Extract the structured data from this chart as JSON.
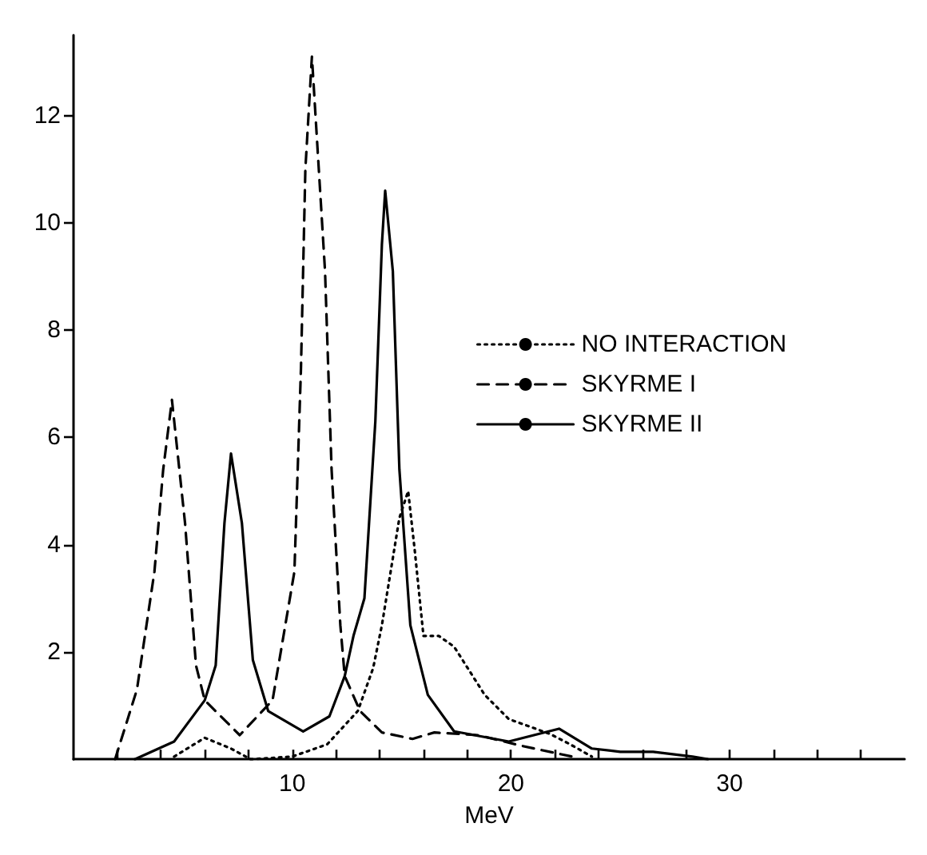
{
  "chart_data": {
    "type": "line",
    "xlabel": "MeV",
    "xlim": [
      0,
      38
    ],
    "ylim": [
      0,
      13.5
    ],
    "xticks": [
      {
        "value": 2,
        "label": null
      },
      {
        "value": 4,
        "label": null
      },
      {
        "value": 6,
        "label": null
      },
      {
        "value": 8,
        "label": null
      },
      10,
      {
        "value": 12,
        "label": null
      },
      {
        "value": 14,
        "label": null
      },
      {
        "value": 16,
        "label": null
      },
      {
        "value": 18,
        "label": null
      },
      20,
      {
        "value": 22,
        "label": null
      },
      {
        "value": 24,
        "label": null
      },
      {
        "value": 26,
        "label": null
      },
      {
        "value": 28,
        "label": null
      },
      30,
      {
        "value": 32,
        "label": null
      },
      {
        "value": 34,
        "label": null
      },
      {
        "value": 36,
        "label": null
      }
    ],
    "yticks": [
      2,
      4,
      6,
      8,
      10,
      12
    ],
    "grid": false,
    "legend": "right",
    "marker": "none",
    "series": [
      {
        "name": "NO INTERACTION",
        "color": "#000000",
        "line_style": "dotted",
        "x": [
          4.6,
          6.0,
          7.2,
          8.1,
          10.0,
          11.6,
          13.0,
          13.7,
          14.1,
          14.9,
          15.3,
          15.6,
          16.0,
          16.7,
          17.4,
          18.8,
          19.9,
          21.8,
          22.7,
          23.7
        ],
        "values": [
          0.05,
          0.4,
          0.2,
          0.0,
          0.05,
          0.28,
          0.9,
          1.7,
          2.5,
          4.5,
          5.0,
          3.9,
          2.3,
          2.3,
          2.1,
          1.2,
          0.75,
          0.47,
          0.28,
          0.05
        ]
      },
      {
        "name": "SKYRME I",
        "color": "#000000",
        "line_style": "dashed",
        "x": [
          1.9,
          2.9,
          3.7,
          4.1,
          4.5,
          5.1,
          5.6,
          6.0,
          7.6,
          9.1,
          10.1,
          10.4,
          10.6,
          10.9,
          11.5,
          11.8,
          12.2,
          12.4,
          13.1,
          14.1,
          15.5,
          16.5,
          18.5,
          20.5,
          22.8,
          23.0
        ],
        "values": [
          0.0,
          1.3,
          3.5,
          5.4,
          6.7,
          4.4,
          1.75,
          1.1,
          0.45,
          1.1,
          3.5,
          7.3,
          11.0,
          13.1,
          9.1,
          5.4,
          2.5,
          1.55,
          0.9,
          0.5,
          0.38,
          0.5,
          0.45,
          0.25,
          0.05,
          0.0
        ]
      },
      {
        "name": "SKYRME II",
        "color": "#000000",
        "line_style": "solid",
        "x": [
          2.8,
          4.6,
          6.0,
          6.5,
          6.9,
          7.2,
          7.7,
          8.2,
          8.9,
          10.5,
          11.7,
          12.4,
          12.8,
          13.3,
          13.8,
          14.1,
          14.25,
          14.6,
          14.9,
          15.4,
          16.2,
          17.4,
          19.9,
          22.2,
          23.7,
          25.0,
          26.5,
          28.3,
          29.0
        ],
        "values": [
          0.0,
          0.33,
          1.1,
          1.75,
          4.4,
          5.7,
          4.4,
          1.85,
          0.9,
          0.52,
          0.8,
          1.55,
          2.3,
          3.0,
          6.3,
          9.6,
          10.6,
          9.1,
          5.4,
          2.5,
          1.2,
          0.52,
          0.33,
          0.57,
          0.2,
          0.14,
          0.14,
          0.05,
          0.0
        ]
      }
    ]
  }
}
